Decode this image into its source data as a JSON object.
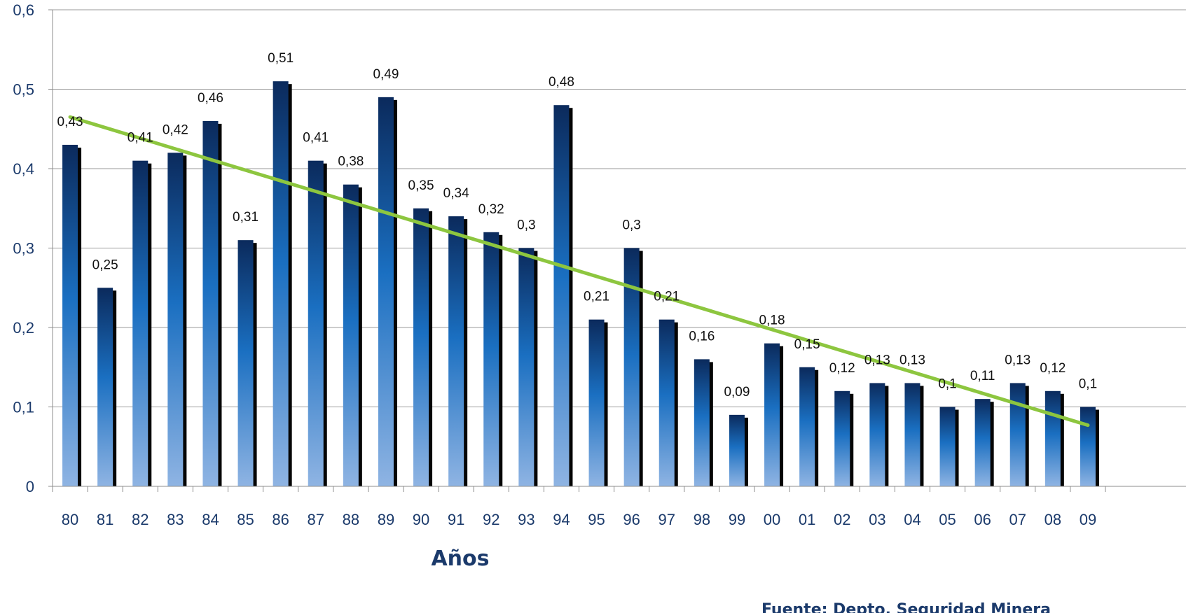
{
  "chart_data": {
    "type": "bar",
    "categories": [
      "80",
      "81",
      "82",
      "83",
      "84",
      "85",
      "86",
      "87",
      "88",
      "89",
      "90",
      "91",
      "92",
      "93",
      "94",
      "95",
      "96",
      "97",
      "98",
      "99",
      "00",
      "01",
      "02",
      "03",
      "04",
      "05",
      "06",
      "07",
      "08",
      "09"
    ],
    "values": [
      0.43,
      0.25,
      0.41,
      0.42,
      0.46,
      0.31,
      0.51,
      0.41,
      0.38,
      0.49,
      0.35,
      0.34,
      0.32,
      0.3,
      0.48,
      0.21,
      0.3,
      0.21,
      0.16,
      0.09,
      0.18,
      0.15,
      0.12,
      0.13,
      0.13,
      0.1,
      0.11,
      0.13,
      0.12,
      0.1
    ],
    "data_labels": [
      "0,43",
      "0,25",
      "0,41",
      "0,42",
      "0,46",
      "0,31",
      "0,51",
      "0,41",
      "0,38",
      "0,49",
      "0,35",
      "0,34",
      "0,32",
      "0,3",
      "0,48",
      "0,21",
      "0,3",
      "0,21",
      "0,16",
      "0,09",
      "0,18",
      "0,15",
      "0,12",
      "0,13",
      "0,13",
      "0,1",
      "0,11",
      "0,13",
      "0,12",
      "0,1"
    ],
    "trendline": {
      "type": "linear",
      "start": 0.465,
      "end": 0.077,
      "color": "#8dc63f"
    },
    "xlabel": "Años",
    "ylabel": "",
    "ylim": [
      0,
      0.6
    ],
    "yticks": [
      0,
      0.1,
      0.2,
      0.3,
      0.4,
      0.5,
      0.6
    ],
    "ytick_labels": [
      "0",
      "0,1",
      "0,2",
      "0,3",
      "0,4",
      "0,5",
      "0,6"
    ],
    "grid": true,
    "bar_color_top": "#0b2a5c",
    "bar_color_mid": "#1a6fc1",
    "bar_color_bottom": "#8fb4e3",
    "source": "Fuente: Depto. Seguridad Minera"
  }
}
